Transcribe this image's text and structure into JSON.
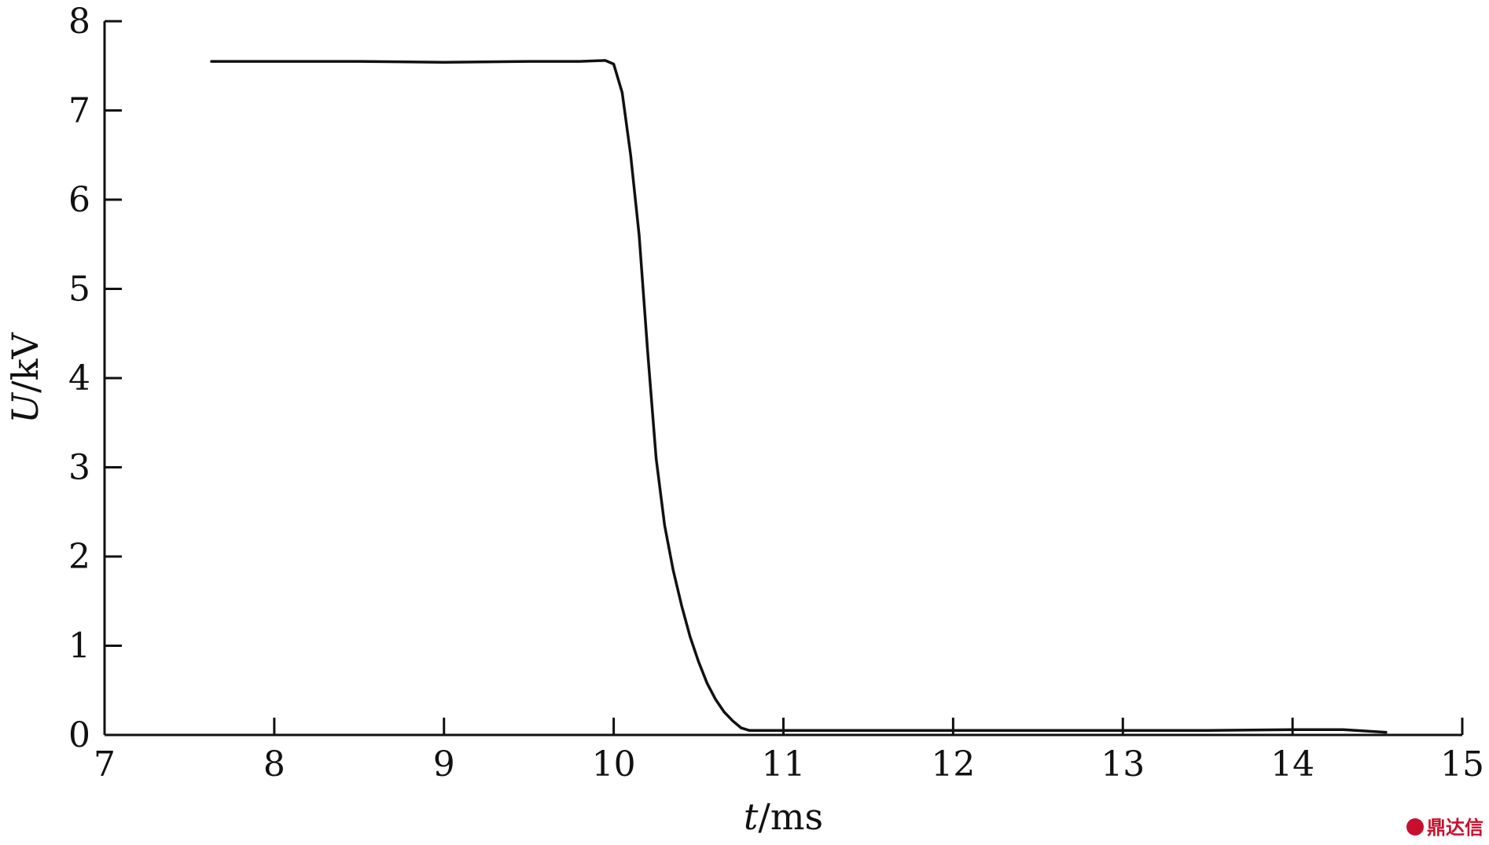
{
  "chart_data": {
    "type": "line",
    "title": "",
    "xlabel": {
      "var": "t",
      "unit": "/ms"
    },
    "ylabel": {
      "var": "U",
      "unit": "/kV"
    },
    "xlim": [
      7,
      15
    ],
    "ylim": [
      0,
      8
    ],
    "xticks": [
      7,
      8,
      9,
      10,
      11,
      12,
      13,
      14,
      15
    ],
    "yticks": [
      0,
      1,
      2,
      3,
      4,
      5,
      6,
      7,
      8
    ],
    "grid": false,
    "legend": "none",
    "color": "#111111",
    "series": [
      {
        "x": [
          7.63,
          8.0,
          8.5,
          9.0,
          9.5,
          9.8,
          9.95,
          10.0,
          10.05,
          10.1,
          10.15,
          10.2,
          10.25,
          10.3,
          10.35,
          10.4,
          10.45,
          10.5,
          10.55,
          10.6,
          10.65,
          10.7,
          10.75,
          10.8,
          10.83,
          10.9,
          11.0,
          11.5,
          12.0,
          12.5,
          13.0,
          13.5,
          14.0,
          14.3,
          14.55
        ],
        "y": [
          7.55,
          7.55,
          7.55,
          7.54,
          7.55,
          7.55,
          7.56,
          7.52,
          7.2,
          6.5,
          5.6,
          4.3,
          3.1,
          2.35,
          1.85,
          1.45,
          1.1,
          0.82,
          0.58,
          0.4,
          0.26,
          0.16,
          0.08,
          0.05,
          0.05,
          0.05,
          0.05,
          0.05,
          0.05,
          0.05,
          0.05,
          0.05,
          0.06,
          0.06,
          0.03
        ]
      }
    ]
  },
  "watermark": {
    "text": "鼎达信",
    "color": "#c8102e"
  }
}
